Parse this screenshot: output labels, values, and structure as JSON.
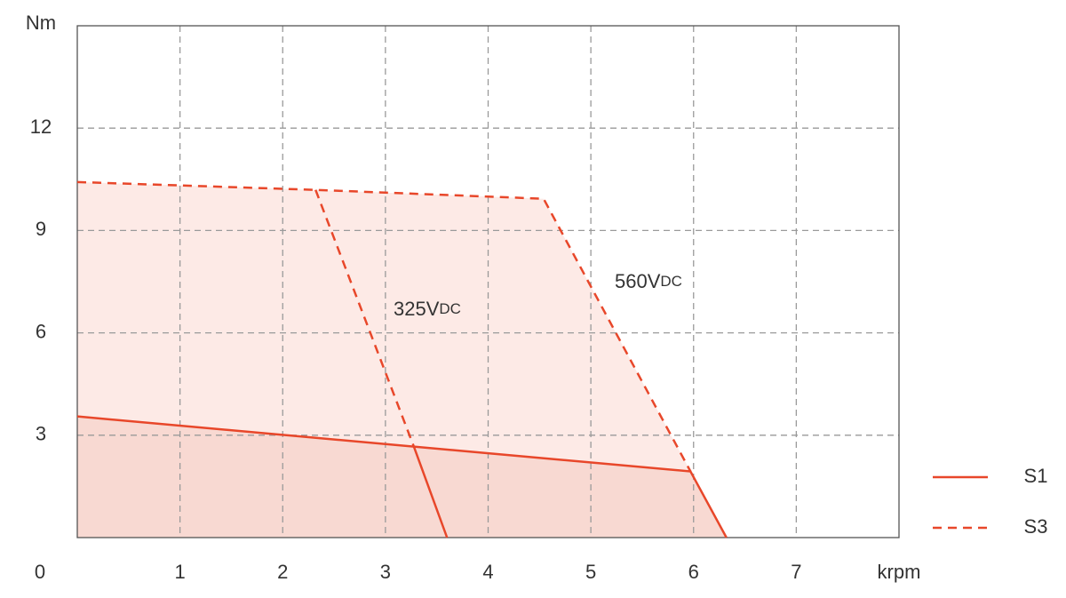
{
  "chart_data": {
    "type": "line",
    "y_label": "Nm",
    "x_label": "krpm",
    "xlim": [
      0,
      8
    ],
    "ylim": [
      0,
      15
    ],
    "xticks": [
      0,
      1,
      2,
      3,
      4,
      5,
      6,
      7
    ],
    "yticks": [
      3,
      6,
      9,
      12
    ],
    "grid": true,
    "legend": "right",
    "series": [
      {
        "name": "S1",
        "color": "#e8472a",
        "style": "solid",
        "fill_color": "#f8d9d2",
        "x": [
          0,
          5.97,
          6.32,
          6.32,
          3.28,
          3.6
        ],
        "values": [
          3.55,
          1.94,
          0,
          null,
          2.64,
          0
        ]
      },
      {
        "name": "S3",
        "color": "#e8472a",
        "style": "dashed",
        "fill_color": "#fdeae6",
        "x": [
          0,
          2.32,
          4.54,
          5.97,
          5.97,
          2.32,
          3.28
        ],
        "values": [
          10.42,
          10.19,
          9.93,
          1.94,
          null,
          10.19,
          2.64
        ]
      }
    ],
    "annotations": [
      {
        "text": "325V",
        "sub": "DC"
      },
      {
        "text": "560V",
        "sub": "DC"
      }
    ]
  }
}
